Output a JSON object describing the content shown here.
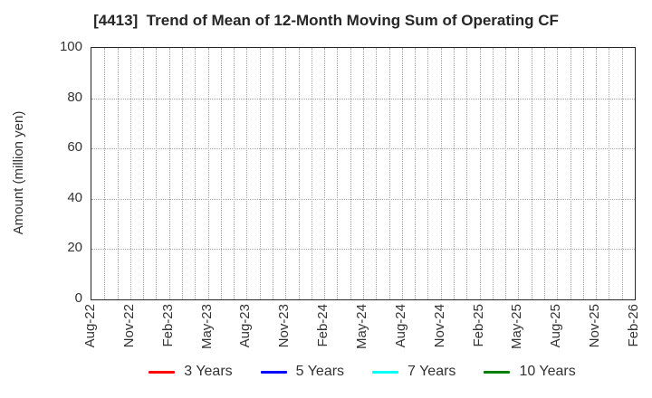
{
  "figure": {
    "title": "[4413]  Trend of Mean of 12-Month Moving Sum of Operating CF"
  },
  "chart_data": {
    "type": "line",
    "title": "[4413]  Trend of Mean of 12-Month Moving Sum of Operating CF",
    "xlabel": "",
    "ylabel": "Amount (million yen)",
    "ylim": [
      0,
      100
    ],
    "yticks": [
      0,
      20,
      40,
      60,
      80,
      100
    ],
    "x_tick_labels": [
      "Aug-22",
      "Nov-22",
      "Feb-23",
      "May-23",
      "Aug-23",
      "Nov-23",
      "Feb-24",
      "May-24",
      "Aug-24",
      "Nov-24",
      "Feb-25",
      "May-25",
      "Aug-25",
      "Nov-25",
      "Feb-26"
    ],
    "x_tick_interval_months": 3,
    "x_months_total": 43,
    "grid": true,
    "grid_style": "dotted",
    "legend_position": "bottom",
    "plot_is_empty": true,
    "series": [
      {
        "name": "3 Years",
        "color": "#ff0000",
        "values": []
      },
      {
        "name": "5 Years",
        "color": "#0000ff",
        "values": []
      },
      {
        "name": "7 Years",
        "color": "#00ffff",
        "values": []
      },
      {
        "name": "10 Years",
        "color": "#008000",
        "values": []
      }
    ]
  },
  "colors": {
    "background": "#ffffff",
    "axis_border": "#262626",
    "gridline": "#a8a8a8",
    "title_text": "#262626",
    "tick_text": "#333333"
  }
}
